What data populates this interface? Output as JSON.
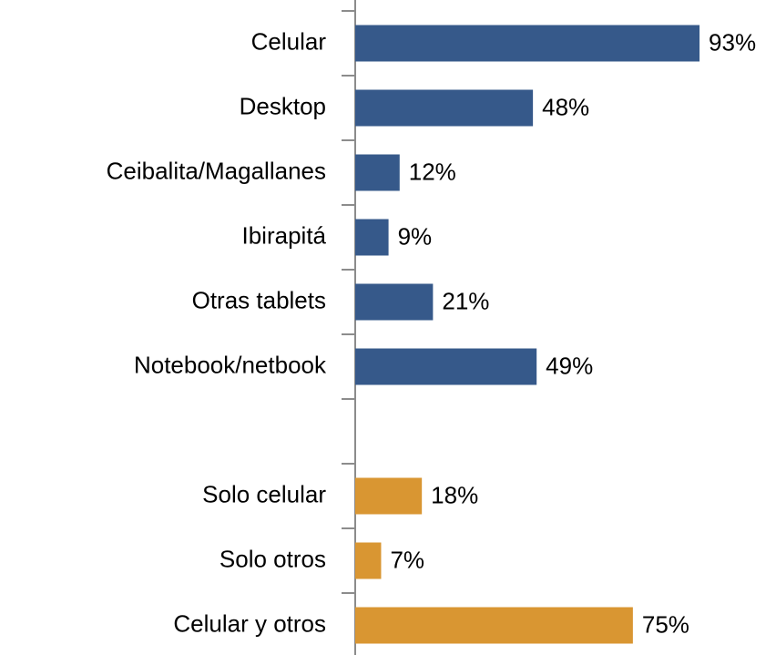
{
  "chart_data": {
    "type": "hbar",
    "categories": [
      "Celular",
      "Desktop",
      "Ceibalita/Magallanes",
      "Ibirapitá",
      "Otras tablets",
      "Notebook/netbook",
      null,
      "Solo celular",
      "Solo otros",
      "Celular y otros"
    ],
    "values": [
      93,
      48,
      12,
      9,
      21,
      49,
      null,
      18,
      7,
      75
    ],
    "value_labels": [
      "93%",
      "48%",
      "12%",
      "9%",
      "21%",
      "49%",
      null,
      "18%",
      "7%",
      "75%"
    ],
    "colors": [
      "#36598a",
      "#36598a",
      "#36598a",
      "#36598a",
      "#36598a",
      "#36598a",
      null,
      "#d99632",
      "#d99632",
      "#d99632"
    ],
    "xlim": [
      0,
      100
    ]
  }
}
